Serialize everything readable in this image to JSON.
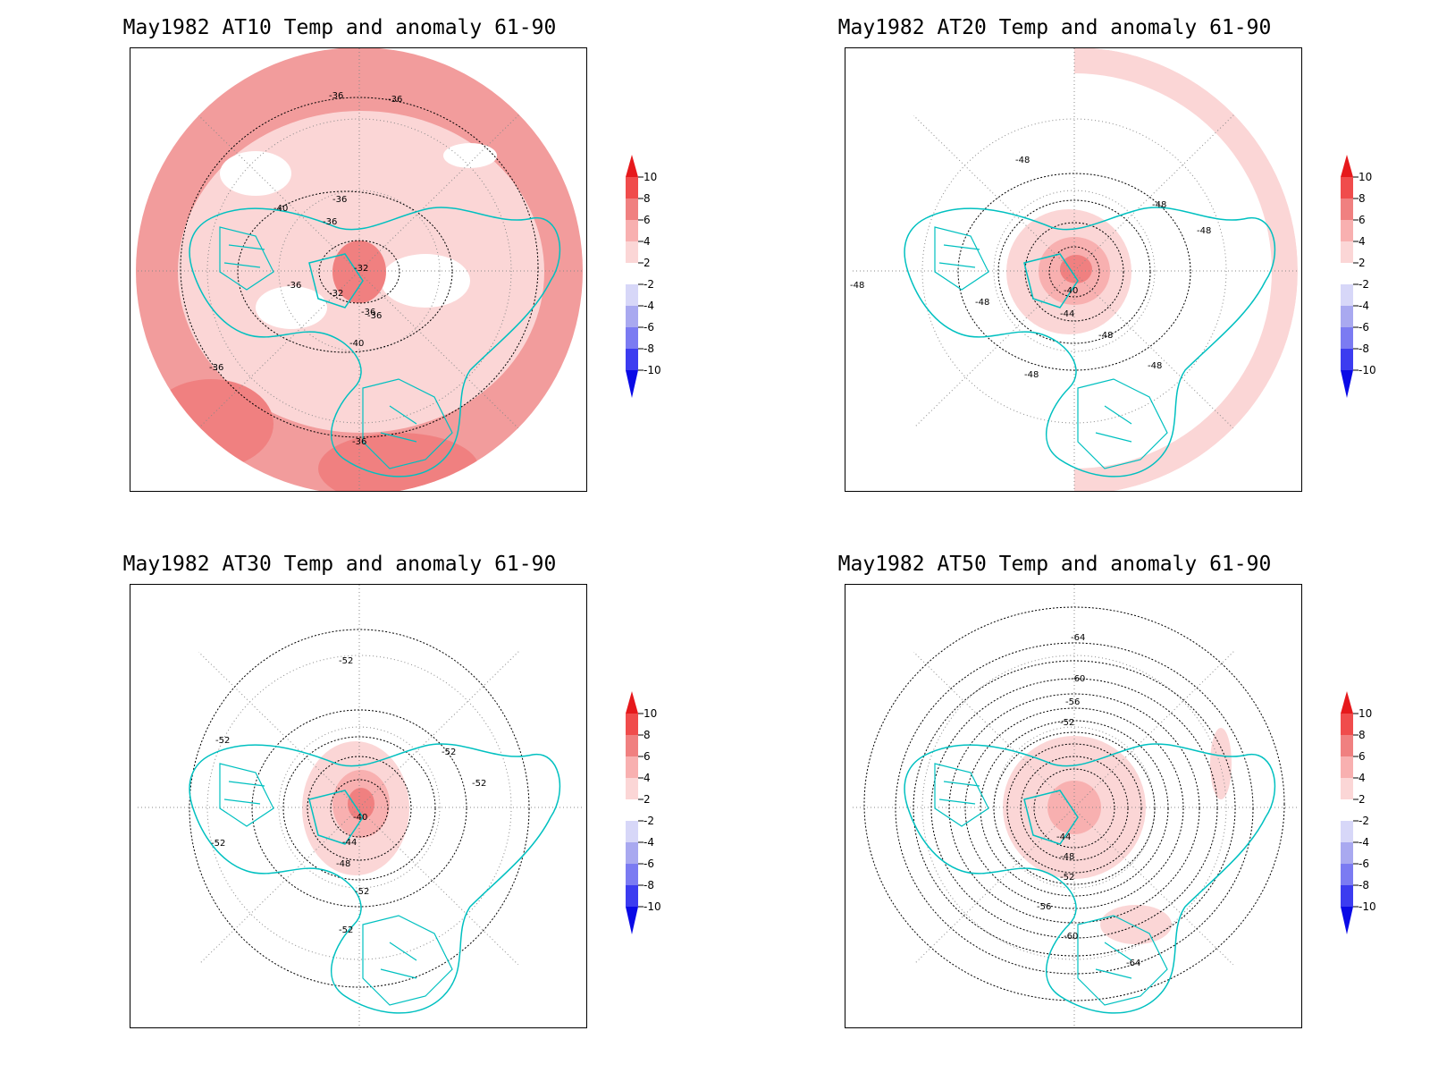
{
  "colorbar": {
    "levels": [
      "10",
      "8",
      "6",
      "4",
      "2",
      "-2",
      "-4",
      "-6",
      "-8",
      "-10"
    ],
    "colors": [
      "#e6191c",
      "#f04c4c",
      "#f08080",
      "#f8b0b0",
      "#fbd6d6",
      "#ffffff",
      "#d7d7f8",
      "#a9a9f0",
      "#7b7bf2",
      "#3c3cf0",
      "#1414f0",
      "#0a0ae6"
    ]
  },
  "panels": [
    {
      "title": "May1982 AT10 Temp and anomaly 61-90",
      "base_fill": "#f4a3a3",
      "contour_labels": [
        "-36",
        "-36",
        "-36",
        "-36",
        "-40",
        "-36",
        "-32",
        "-32",
        "-36",
        "-36",
        "-40",
        "-36",
        "-36"
      ]
    },
    {
      "title": "May1982 AT20 Temp and anomaly 61-90",
      "base_fill": "#ffffff",
      "contour_labels": [
        "-48",
        "-48",
        "-48",
        "-48",
        "-48",
        "-40",
        "-44",
        "-48",
        "-48",
        "-48"
      ]
    },
    {
      "title": "May1982 AT30 Temp and anomaly 61-90",
      "base_fill": "#ffffff",
      "contour_labels": [
        "-52",
        "-52",
        "-52",
        "-52",
        "-52",
        "-40",
        "-44",
        "-48",
        "-52",
        "-52"
      ]
    },
    {
      "title": "May1982 AT50 Temp and anomaly 61-90",
      "base_fill": "#ffffff",
      "contour_labels": [
        "-64",
        "-60",
        "-56",
        "-52",
        "-44",
        "-48",
        "-52",
        "-56",
        "-60",
        "-64"
      ]
    }
  ]
}
